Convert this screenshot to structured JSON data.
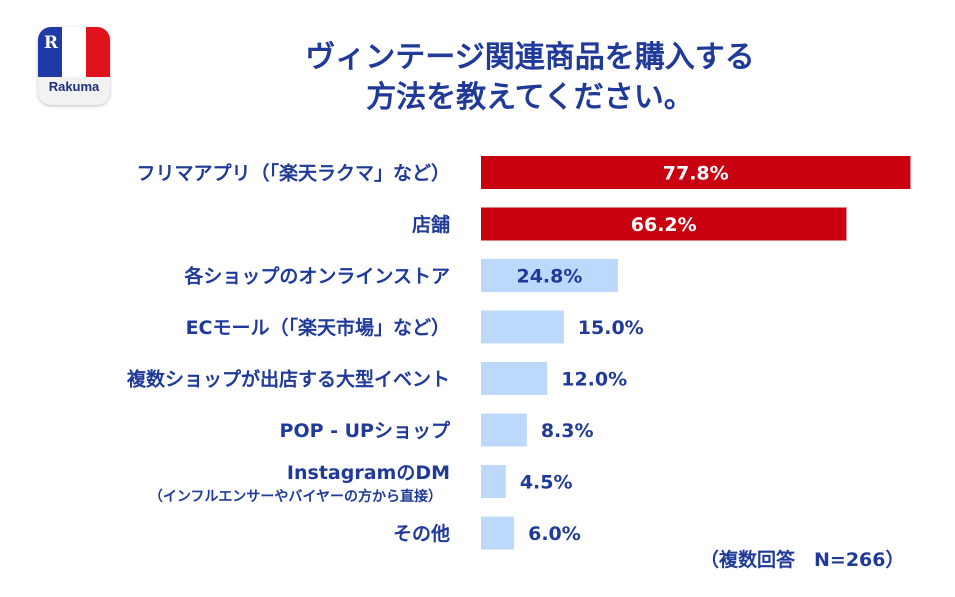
{
  "logo": {
    "mark": "R",
    "name": "Rakuma"
  },
  "title_lines": [
    "ヴィンテージ関連商品を購入する",
    "方法を教えてください。"
  ],
  "note": "（複数回答　N=266）",
  "colors": {
    "highlight": "#c8000f",
    "normal": "#bcd8fa",
    "text": "#1f3a99"
  },
  "chart_data": {
    "type": "bar",
    "orientation": "horizontal",
    "title": "ヴィンテージ関連商品を購入する方法を教えてください。",
    "categories": [
      "フリマアプリ（「楽天ラクマ」など）",
      "店舗",
      "各ショップのオンラインストア",
      "ECモール（「楽天市場」など）",
      "複数ショップが出店する大型イベント",
      "POP - UPショップ",
      "InstagramのDM",
      "その他"
    ],
    "sublabels": [
      "",
      "",
      "",
      "",
      "",
      "",
      "（インフルエンサーやバイヤーの方から直接）",
      ""
    ],
    "values": [
      77.8,
      66.2,
      24.8,
      15.0,
      12.0,
      8.3,
      4.5,
      6.0
    ],
    "value_labels": [
      "77.8%",
      "66.2%",
      "24.8%",
      "15.0%",
      "12.0%",
      "8.3%",
      "4.5%",
      "6.0%"
    ],
    "highlight": [
      true,
      true,
      false,
      false,
      false,
      false,
      false,
      false
    ],
    "unit": "%",
    "xlim": [
      0,
      80
    ],
    "grid": false,
    "legend": "none"
  }
}
